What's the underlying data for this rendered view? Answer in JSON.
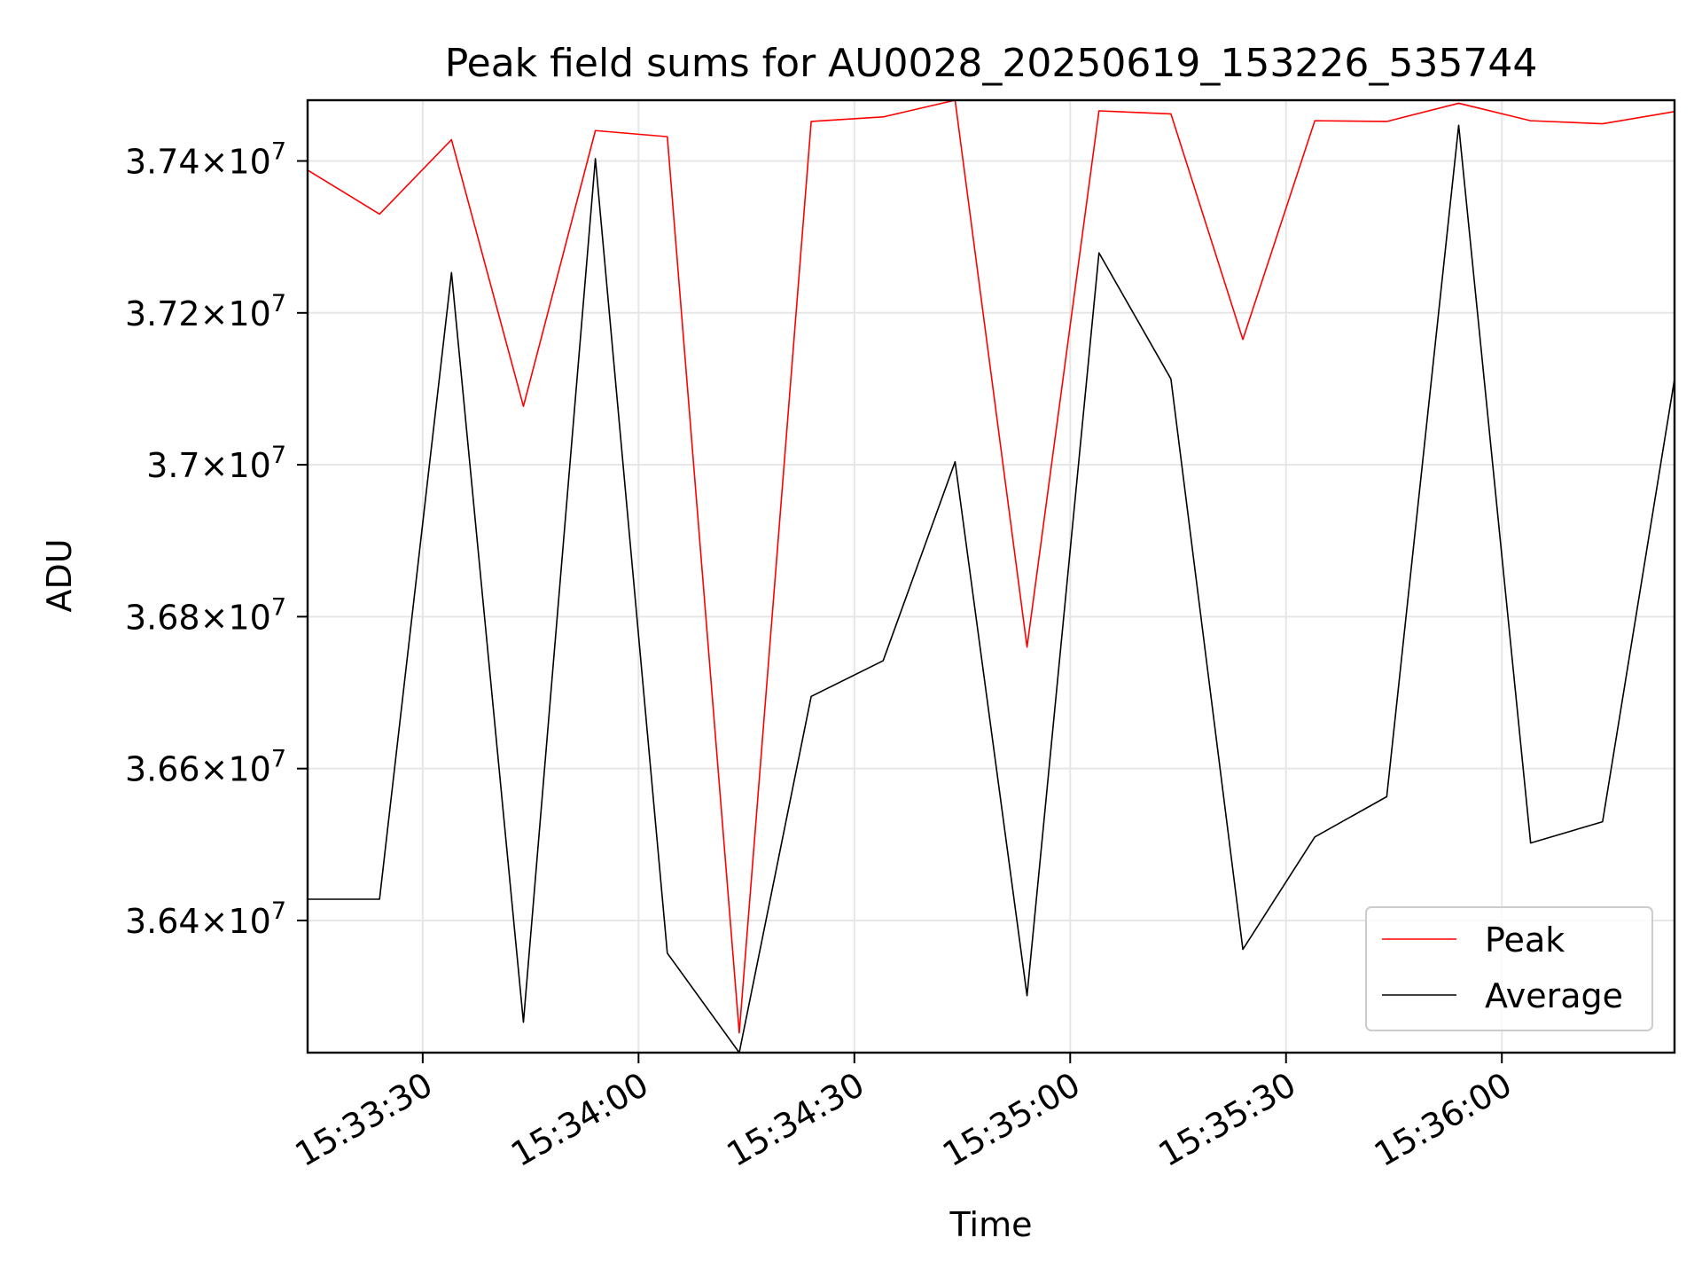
{
  "chart_data": {
    "type": "line",
    "title": "Peak field sums for AU0028_20250619_153226_535744",
    "xlabel": "Time",
    "ylabel": "ADU",
    "x": [
      "15:33:14",
      "15:33:24",
      "15:33:34",
      "15:33:44",
      "15:33:54",
      "15:34:04",
      "15:34:14",
      "15:34:24",
      "15:34:34",
      "15:34:44",
      "15:34:54",
      "15:35:04",
      "15:35:14",
      "15:35:24",
      "15:35:34",
      "15:35:44",
      "15:35:54",
      "15:36:04",
      "15:36:14",
      "15:36:24"
    ],
    "series": [
      {
        "name": "Peak",
        "color": "#ff0000",
        "values": [
          37388000,
          37330000,
          37428000,
          37077000,
          37440000,
          37432000,
          36252000,
          37452000,
          37458000,
          37480000,
          36760000,
          37466000,
          37462000,
          37165000,
          37453000,
          37452000,
          37476000,
          37453000,
          37449000,
          37465000
        ]
      },
      {
        "name": "Average",
        "color": "#000000",
        "values": [
          36428000,
          36428000,
          37253000,
          36266000,
          37403000,
          36357000,
          36226000,
          36695000,
          36742000,
          37004000,
          36301000,
          37279000,
          37113000,
          36362000,
          36510000,
          36563000,
          37447000,
          36502000,
          36530000,
          37113000
        ]
      }
    ],
    "x_ticks": [
      {
        "label": "15:33:30",
        "t": "15:33:30"
      },
      {
        "label": "15:34:00",
        "t": "15:34:00"
      },
      {
        "label": "15:34:30",
        "t": "15:34:30"
      },
      {
        "label": "15:35:00",
        "t": "15:35:00"
      },
      {
        "label": "15:35:30",
        "t": "15:35:30"
      },
      {
        "label": "15:36:00",
        "t": "15:36:00"
      }
    ],
    "y_ticks": [
      {
        "mantissa": "3.64",
        "exponent": "7",
        "value": 36400000
      },
      {
        "mantissa": "3.66",
        "exponent": "7",
        "value": 36600000
      },
      {
        "mantissa": "3.68",
        "exponent": "7",
        "value": 36800000
      },
      {
        "mantissa": "3.7",
        "exponent": "7",
        "value": 37000000
      },
      {
        "mantissa": "3.72",
        "exponent": "7",
        "value": 37200000
      },
      {
        "mantissa": "3.74",
        "exponent": "7",
        "value": 37400000
      }
    ],
    "xlim": [
      "15:33:14",
      "15:36:24"
    ],
    "ylim": [
      36226000,
      37480000
    ],
    "grid": true,
    "legend_position": "bottom-right"
  }
}
